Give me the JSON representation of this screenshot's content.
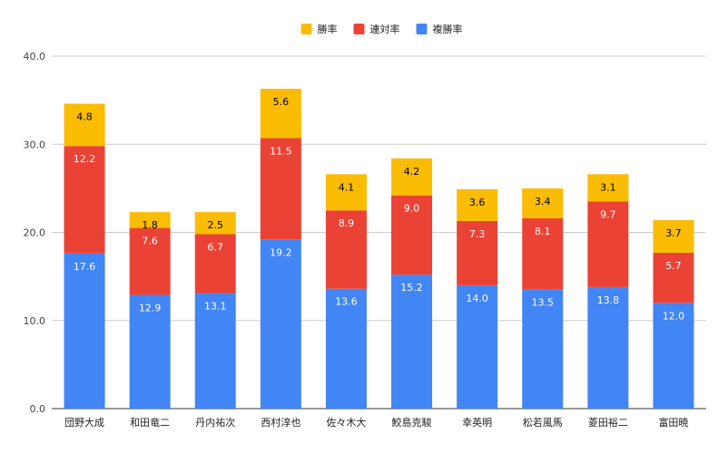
{
  "chart_data": {
    "type": "bar",
    "stacked": true,
    "title": "",
    "xlabel": "",
    "ylabel": "",
    "ylim": [
      0,
      40
    ],
    "yticks": [
      "0.0",
      "10.0",
      "20.0",
      "30.0",
      "40.0"
    ],
    "grid": true,
    "legend_position": "top-center",
    "categories": [
      "団野大成",
      "和田竜二",
      "丹内祐次",
      "西村淳也",
      "佐々木大",
      "鮫島克駿",
      "幸英明",
      "松若風馬",
      "菱田裕二",
      "富田暁"
    ],
    "series": [
      {
        "name": "複勝率",
        "color": "#4285f4",
        "label_color": "#ffffff",
        "values": [
          17.6,
          12.9,
          13.1,
          19.2,
          13.6,
          15.2,
          14.0,
          13.5,
          13.8,
          12.0
        ],
        "labels": [
          "17.6",
          "12.9",
          "13.1",
          "19.2",
          "13.6",
          "15.2",
          "14.0",
          "13.5",
          "13.8",
          "12.0"
        ]
      },
      {
        "name": "連対率",
        "color": "#ea4335",
        "label_color": "#ffffff",
        "values": [
          12.2,
          7.6,
          6.7,
          11.5,
          8.9,
          9.0,
          7.3,
          8.1,
          9.7,
          5.7
        ],
        "labels": [
          "12.2",
          "7.6",
          "6.7",
          "11.5",
          "8.9",
          "9.0",
          "7.3",
          "8.1",
          "9.7",
          "5.7"
        ]
      },
      {
        "name": "勝率",
        "color": "#fbbc04",
        "label_color": "#000000",
        "values": [
          4.8,
          1.8,
          2.5,
          5.6,
          4.1,
          4.2,
          3.6,
          3.4,
          3.1,
          3.7
        ],
        "labels": [
          "4.8",
          "1.8",
          "2.5",
          "5.6",
          "4.1",
          "4.2",
          "3.6",
          "3.4",
          "3.1",
          "3.7"
        ]
      }
    ],
    "legend_order": [
      "勝率",
      "連対率",
      "複勝率"
    ]
  }
}
